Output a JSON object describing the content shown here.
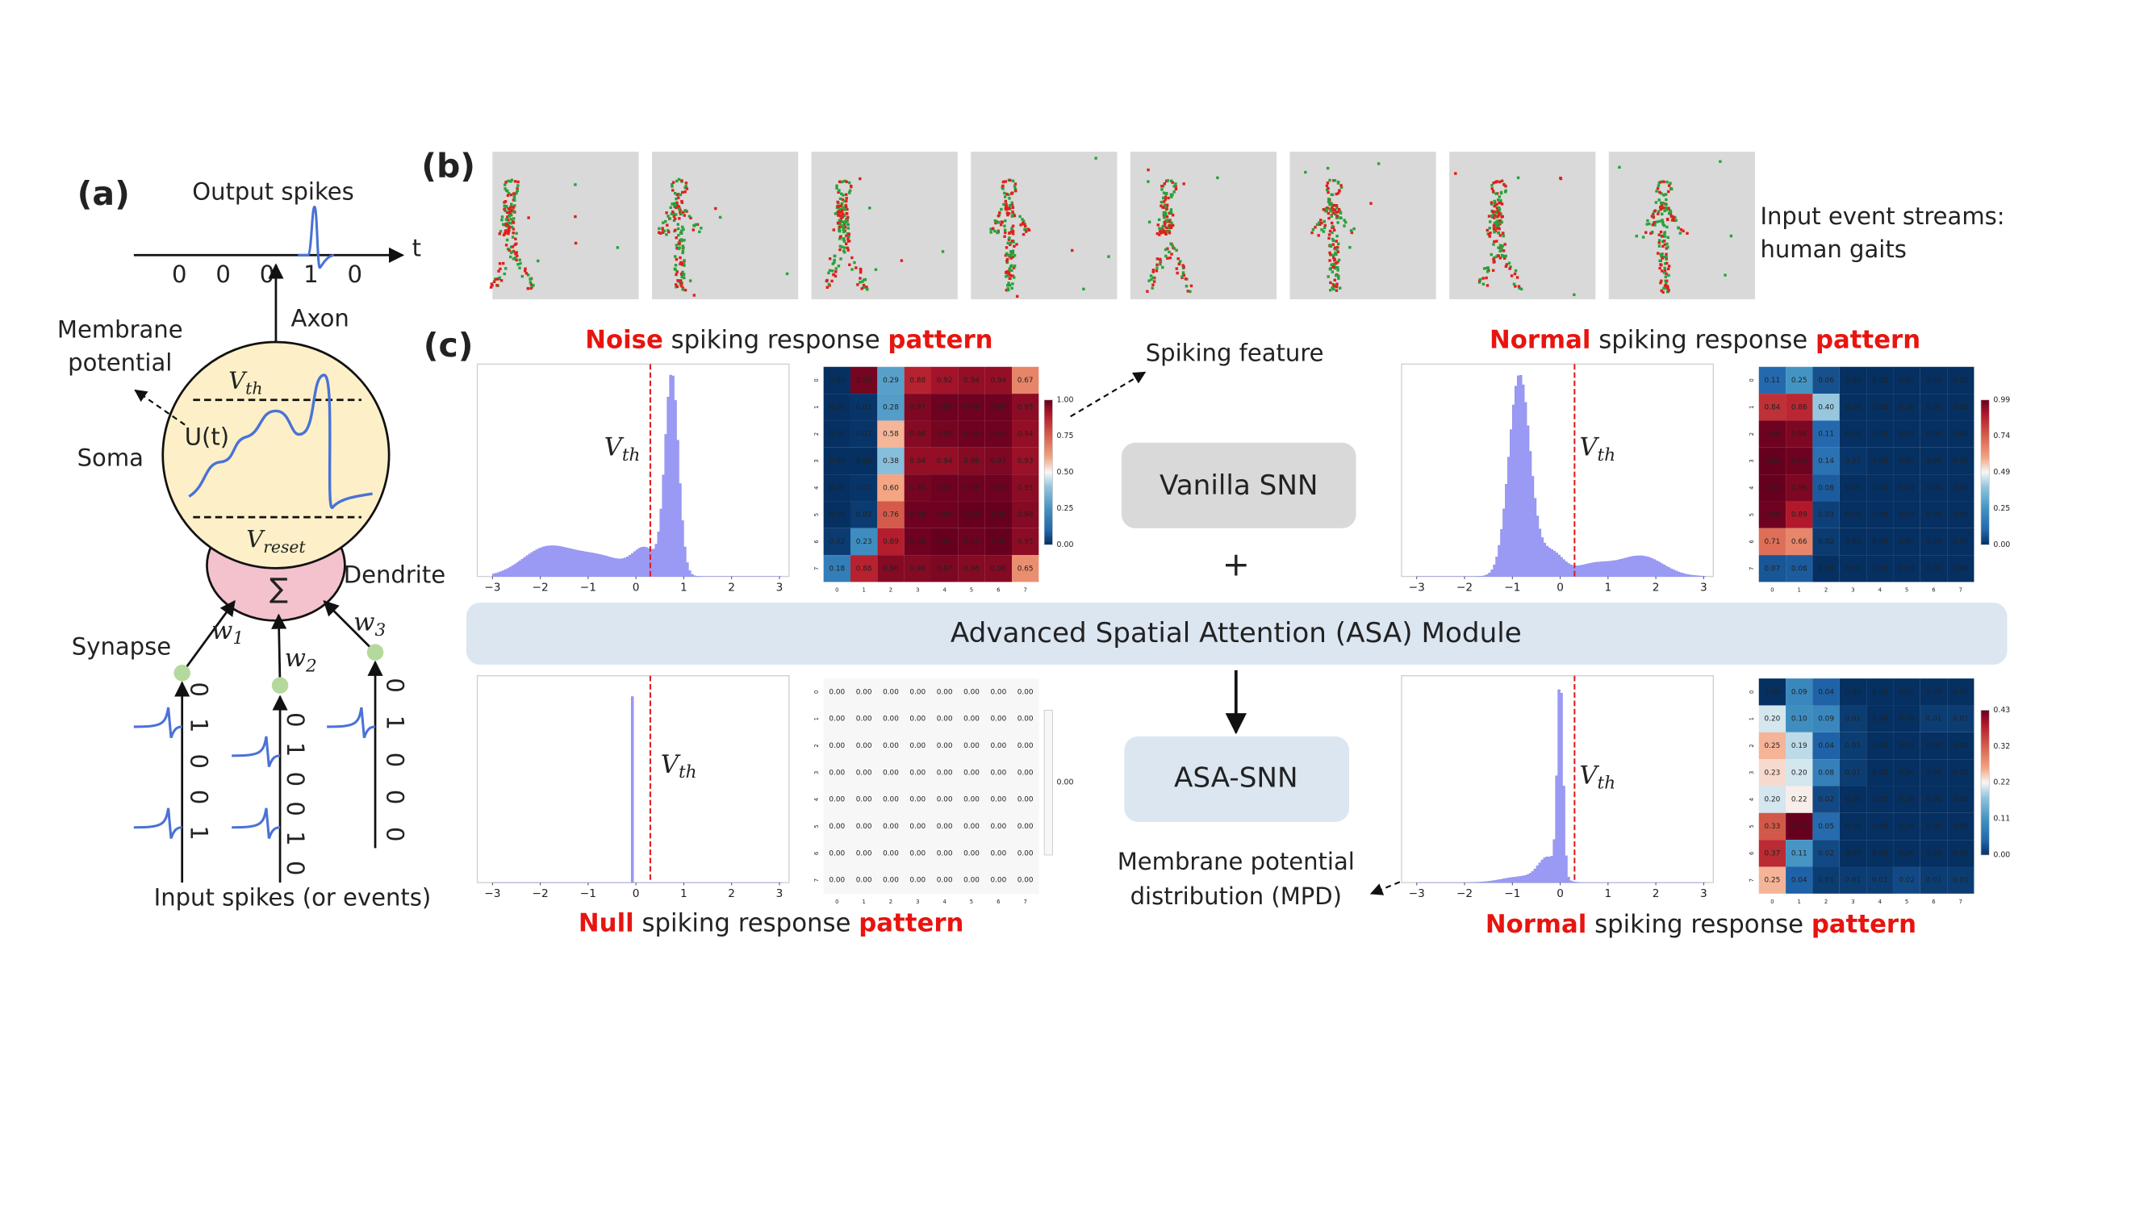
{
  "panel_a": {
    "label": "(a)",
    "output_title": "Output spikes",
    "time_axis": "t",
    "output_digits": [
      "0",
      "0",
      "0",
      "1",
      "0"
    ],
    "axon": "Axon",
    "membrane_potential": [
      "Membrane",
      "potential"
    ],
    "v_th": {
      "symbol": "V",
      "subscript": "th"
    },
    "u_t": "U(t)",
    "soma": "Soma",
    "v_reset": {
      "symbol": "V",
      "subscript": "reset"
    },
    "sum": "∑",
    "dendrite": "Dendrite",
    "synapse": "Synapse",
    "weights": [
      {
        "symbol": "w",
        "subscript": "1"
      },
      {
        "symbol": "w",
        "subscript": "2"
      },
      {
        "symbol": "w",
        "subscript": "3"
      }
    ],
    "input_digits": [
      [
        "0",
        "1",
        "0",
        "0",
        "1"
      ],
      [
        "0",
        "1",
        "0",
        "0",
        "1",
        "0"
      ],
      [
        "0",
        "1",
        "0",
        "0",
        "0"
      ]
    ],
    "input_caption": "Input spikes (or events)"
  },
  "panel_b": {
    "label": "(b)",
    "caption": [
      "Input event streams:",
      "human gaits"
    ]
  },
  "panel_c": {
    "label": "(c)",
    "spiking_feature": "Spiking feature",
    "vanilla_snn": "Vanilla SNN",
    "plus": "+",
    "asa_module": "Advanced Spatial Attention (ASA) Module",
    "asa_snn": "ASA-SNN",
    "mpd": [
      "Membrane potential",
      "distribution (MPD)"
    ],
    "panels": [
      {
        "title": [
          {
            "text": "Noise",
            "highlight": true
          },
          {
            "text": " spiking response ",
            "highlight": false
          },
          {
            "text": "pattern",
            "highlight": true
          }
        ],
        "hist_xticks": [
          "−3",
          "−2",
          "−1",
          "0",
          "1",
          "2",
          "3"
        ],
        "threshold_label": {
          "symbol": "V",
          "subscript": "th"
        },
        "heatmap": {
          "axis_labels": [
            "0",
            "1",
            "2",
            "3",
            "4",
            "5",
            "6",
            "7"
          ],
          "cells": [
            [
              "0.00",
              "0.98",
              "0.29",
              "0.88",
              "0.92",
              "0.94",
              "0.94",
              "0.67"
            ],
            [
              "0.00",
              "0.01",
              "0.28",
              "0.97",
              "0.99",
              "0.99",
              "0.99",
              "0.95"
            ],
            [
              "0.00",
              "0.01",
              "0.58",
              "0.96",
              "0.98",
              "0.99",
              "0.99",
              "0.94"
            ],
            [
              "0.00",
              "0.00",
              "0.38",
              "0.94",
              "0.94",
              "0.96",
              "0.97",
              "0.93"
            ],
            [
              "0.00",
              "0.01",
              "0.60",
              "0.98",
              "0.99",
              "0.99",
              "0.99",
              "0.95"
            ],
            [
              "0.00",
              "0.02",
              "0.76",
              "0.99",
              "0.99",
              "1.00",
              "1.00",
              "0.96"
            ],
            [
              "0.02",
              "0.23",
              "0.89",
              "0.99",
              "1.00",
              "0.99",
              "1.00",
              "0.95"
            ],
            [
              "0.18",
              "0.88",
              "0.96",
              "0.96",
              "0.97",
              "0.96",
              "0.96",
              "0.65"
            ]
          ],
          "colorbar": [
            "1.00",
            "0.75",
            "0.50",
            "0.25",
            "0.00"
          ]
        }
      },
      {
        "title": [
          {
            "text": "Normal",
            "highlight": true
          },
          {
            "text": " spiking response ",
            "highlight": false
          },
          {
            "text": "pattern",
            "highlight": true
          }
        ],
        "hist_xticks": [
          "−3",
          "−2",
          "−1",
          "0",
          "1",
          "2",
          "3"
        ],
        "threshold_label": {
          "symbol": "V",
          "subscript": "th"
        },
        "heatmap": {
          "axis_labels": [
            "0",
            "1",
            "2",
            "3",
            "4",
            "5",
            "6",
            "7"
          ],
          "cells": [
            [
              "0.11",
              "0.25",
              "0.06",
              "0.00",
              "0.00",
              "0.00",
              "0.00",
              "0.00"
            ],
            [
              "0.84",
              "0.86",
              "0.40",
              "0.00",
              "0.00",
              "0.00",
              "0.00",
              "0.00"
            ],
            [
              "0.98",
              "0.96",
              "0.11",
              "0.00",
              "0.00",
              "0.00",
              "0.00",
              "0.00"
            ],
            [
              "0.99",
              "0.98",
              "0.14",
              "0.01",
              "0.00",
              "0.00",
              "0.00",
              "0.00"
            ],
            [
              "0.99",
              "0.96",
              "0.08",
              "0.00",
              "0.00",
              "0.00",
              "0.00",
              "0.00"
            ],
            [
              "0.98",
              "0.89",
              "0.03",
              "0.00",
              "0.00",
              "0.00",
              "0.00",
              "0.00"
            ],
            [
              "0.71",
              "0.66",
              "0.02",
              "0.00",
              "0.00",
              "0.00",
              "0.00",
              "0.00"
            ],
            [
              "0.07",
              "0.08",
              "0.00",
              "0.00",
              "0.00",
              "0.00",
              "0.00",
              "0.00"
            ]
          ],
          "colorbar": [
            "0.99",
            "0.74",
            "0.49",
            "0.25",
            "0.00"
          ]
        }
      },
      {
        "title": [
          {
            "text": "Null",
            "highlight": true
          },
          {
            "text": " spiking response ",
            "highlight": false
          },
          {
            "text": "pattern",
            "highlight": true
          }
        ],
        "hist_xticks": [
          "−3",
          "−2",
          "−1",
          "0",
          "1",
          "2",
          "3"
        ],
        "threshold_label": {
          "symbol": "V",
          "subscript": "th"
        },
        "heatmap": {
          "axis_labels": [
            "0",
            "1",
            "2",
            "3",
            "4",
            "5",
            "6",
            "7"
          ],
          "cells": [
            [
              "0.00",
              "0.00",
              "0.00",
              "0.00",
              "0.00",
              "0.00",
              "0.00",
              "0.00"
            ],
            [
              "0.00",
              "0.00",
              "0.00",
              "0.00",
              "0.00",
              "0.00",
              "0.00",
              "0.00"
            ],
            [
              "0.00",
              "0.00",
              "0.00",
              "0.00",
              "0.00",
              "0.00",
              "0.00",
              "0.00"
            ],
            [
              "0.00",
              "0.00",
              "0.00",
              "0.00",
              "0.00",
              "0.00",
              "0.00",
              "0.00"
            ],
            [
              "0.00",
              "0.00",
              "0.00",
              "0.00",
              "0.00",
              "0.00",
              "0.00",
              "0.00"
            ],
            [
              "0.00",
              "0.00",
              "0.00",
              "0.00",
              "0.00",
              "0.00",
              "0.00",
              "0.00"
            ],
            [
              "0.00",
              "0.00",
              "0.00",
              "0.00",
              "0.00",
              "0.00",
              "0.00",
              "0.00"
            ],
            [
              "0.00",
              "0.00",
              "0.00",
              "0.00",
              "0.00",
              "0.00",
              "0.00",
              "0.00"
            ]
          ],
          "colorbar": [
            "0.00"
          ]
        }
      },
      {
        "title": [
          {
            "text": "Normal",
            "highlight": true
          },
          {
            "text": " spiking response ",
            "highlight": false
          },
          {
            "text": "pattern",
            "highlight": true
          }
        ],
        "hist_xticks": [
          "−3",
          "−2",
          "−1",
          "0",
          "1",
          "2",
          "3"
        ],
        "threshold_label": {
          "symbol": "V",
          "subscript": "th"
        },
        "heatmap": {
          "axis_labels": [
            "0",
            "1",
            "2",
            "3",
            "4",
            "5",
            "6",
            "7"
          ],
          "cells": [
            [
              "0.00",
              "0.09",
              "0.04",
              "0.00",
              "0.00",
              "0.00",
              "0.00",
              "0.00"
            ],
            [
              "0.20",
              "0.10",
              "0.09",
              "0.01",
              "0.00",
              "0.00",
              "0.01",
              "0.01"
            ],
            [
              "0.25",
              "0.19",
              "0.04",
              "0.01",
              "0.00",
              "0.00",
              "0.00",
              "0.00"
            ],
            [
              "0.23",
              "0.20",
              "0.08",
              "0.01",
              "0.00",
              "0.00",
              "0.00",
              "0.00"
            ],
            [
              "0.20",
              "0.22",
              "0.02",
              "0.00",
              "0.00",
              "0.00",
              "0.00",
              "0.00"
            ],
            [
              "0.33",
              "0.43",
              "0.05",
              "0.00",
              "0.00",
              "0.00",
              "0.00",
              "0.00"
            ],
            [
              "0.37",
              "0.11",
              "0.02",
              "0.00",
              "0.00",
              "0.00",
              "0.00",
              "0.00"
            ],
            [
              "0.25",
              "0.04",
              "0.01",
              "0.01",
              "0.01",
              "0.02",
              "0.01",
              "0.01"
            ]
          ],
          "colorbar": [
            "0.43",
            "0.32",
            "0.22",
            "0.11",
            "0.00"
          ]
        }
      }
    ]
  }
}
